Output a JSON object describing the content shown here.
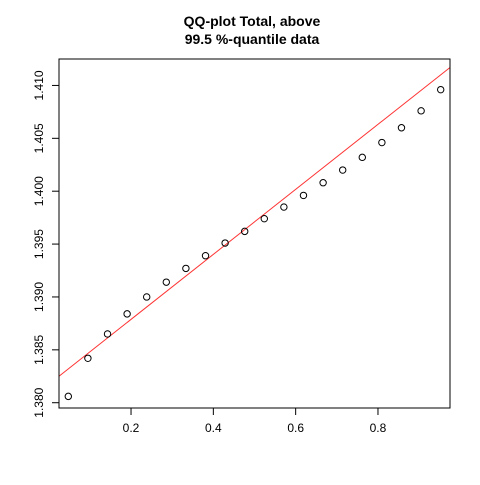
{
  "chart_data": {
    "type": "scatter",
    "title": "QQ-plot Total, above",
    "subtitle": "99.5 %-quantile data",
    "xlabel": "",
    "ylabel": "",
    "xlim": [
      0.025,
      0.975
    ],
    "ylim": [
      1.3795,
      1.4125
    ],
    "x_ticks": [
      0.2,
      0.4,
      0.6,
      0.8
    ],
    "x_tick_labels": [
      "0.2",
      "0.4",
      "0.6",
      "0.8"
    ],
    "y_ticks": [
      1.38,
      1.385,
      1.39,
      1.395,
      1.4,
      1.405,
      1.41
    ],
    "y_tick_labels": [
      "1.380",
      "1.385",
      "1.390",
      "1.395",
      "1.400",
      "1.405",
      "1.410"
    ],
    "grid": false,
    "legend": "none",
    "series": [
      {
        "type": "scatter",
        "marker": "open-circle",
        "color": "#000000",
        "x": [
          0.0476,
          0.0952,
          0.1429,
          0.1905,
          0.2381,
          0.2857,
          0.3333,
          0.381,
          0.4286,
          0.4762,
          0.5238,
          0.5714,
          0.619,
          0.6667,
          0.7143,
          0.7619,
          0.8095,
          0.8571,
          0.9048,
          0.9524
        ],
        "y": [
          1.3806,
          1.3842,
          1.3865,
          1.3884,
          1.39,
          1.3914,
          1.3927,
          1.3939,
          1.3951,
          1.3962,
          1.3974,
          1.3985,
          1.3996,
          1.4008,
          1.402,
          1.4032,
          1.4046,
          1.406,
          1.4076,
          1.4096
        ]
      }
    ],
    "reference_line": {
      "type": "line",
      "color": "#ff3333",
      "x": [
        0.025,
        0.975
      ],
      "y": [
        1.3825,
        1.4117
      ]
    }
  }
}
